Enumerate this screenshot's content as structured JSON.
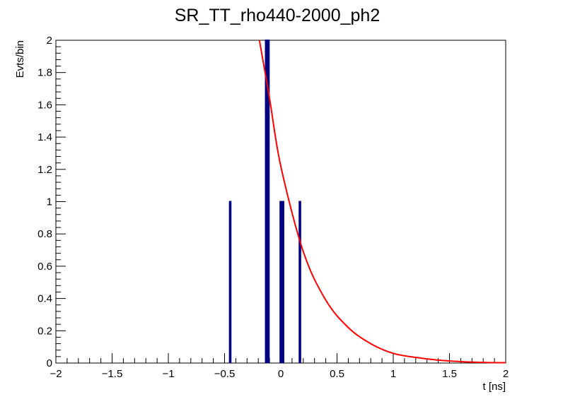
{
  "chart_data": {
    "type": "bar",
    "title": "SR_TT_rho440-2000_ph2",
    "xlabel": "t [ns]",
    "ylabel": "Evts/bin",
    "xlim": [
      -2,
      2
    ],
    "ylim": [
      0,
      2
    ],
    "grid": false,
    "legend": "none",
    "x_ticks": [
      -2,
      -1.5,
      -1,
      -0.5,
      0,
      0.5,
      1,
      1.5,
      2
    ],
    "x_tick_labels": [
      "−2",
      "−1.5",
      "−1",
      "−0.5",
      "0",
      "0.5",
      "1",
      "1.5",
      "2"
    ],
    "y_ticks": [
      0,
      0.2,
      0.4,
      0.6,
      0.8,
      1,
      1.2,
      1.4,
      1.6,
      1.8,
      2
    ],
    "y_tick_labels": [
      "0",
      "0.2",
      "0.4",
      "0.6",
      "0.8",
      "1",
      "1.2",
      "1.4",
      "1.6",
      "1.8",
      "2"
    ],
    "histogram": {
      "bin_width": 0.01,
      "bins": [
        {
          "x": -0.45,
          "value": 1
        },
        {
          "x": -0.13,
          "value": 2
        },
        {
          "x": -0.11,
          "value": 2
        },
        {
          "x": 0.0,
          "value": 1
        },
        {
          "x": 0.02,
          "value": 1
        },
        {
          "x": 0.17,
          "value": 1
        }
      ],
      "color": "#000080"
    },
    "fit": {
      "function": "exponential",
      "color": "#ff0000",
      "points": [
        {
          "x": -0.19,
          "y": 2.0
        },
        {
          "x": -0.1,
          "y": 1.64
        },
        {
          "x": 0.0,
          "y": 1.22
        },
        {
          "x": 0.2,
          "y": 0.69
        },
        {
          "x": 0.4,
          "y": 0.39
        },
        {
          "x": 0.6,
          "y": 0.22
        },
        {
          "x": 0.8,
          "y": 0.12
        },
        {
          "x": 1.0,
          "y": 0.06
        },
        {
          "x": 1.2,
          "y": 0.035
        },
        {
          "x": 1.4,
          "y": 0.018
        },
        {
          "x": 1.6,
          "y": 0.009
        },
        {
          "x": 1.8,
          "y": 0.004
        },
        {
          "x": 2.0,
          "y": 0.002
        }
      ]
    }
  }
}
